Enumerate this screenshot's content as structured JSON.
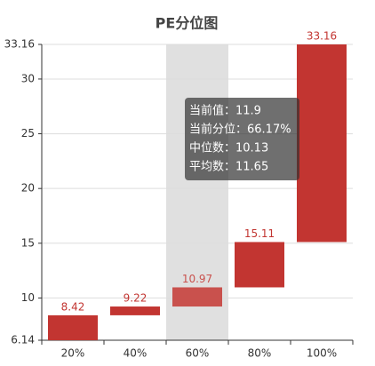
{
  "chart_data": {
    "type": "floating-bar",
    "title": "PE分位图",
    "categories": [
      "20%",
      "40%",
      "60%",
      "80%",
      "100%"
    ],
    "values": [
      8.42,
      9.22,
      10.97,
      15.11,
      33.16
    ],
    "color": "#c23531",
    "highlight_color": "#c9514d",
    "highlight": 2,
    "ylim": [
      6.14,
      33.16
    ],
    "yticks": [
      6.14,
      10,
      15,
      20,
      25,
      30,
      33.16
    ],
    "grid": true,
    "tooltip": [
      "当前值：11.9",
      "当前分位：66.17%",
      "中位数：10.13",
      "平均数：11.65"
    ]
  }
}
